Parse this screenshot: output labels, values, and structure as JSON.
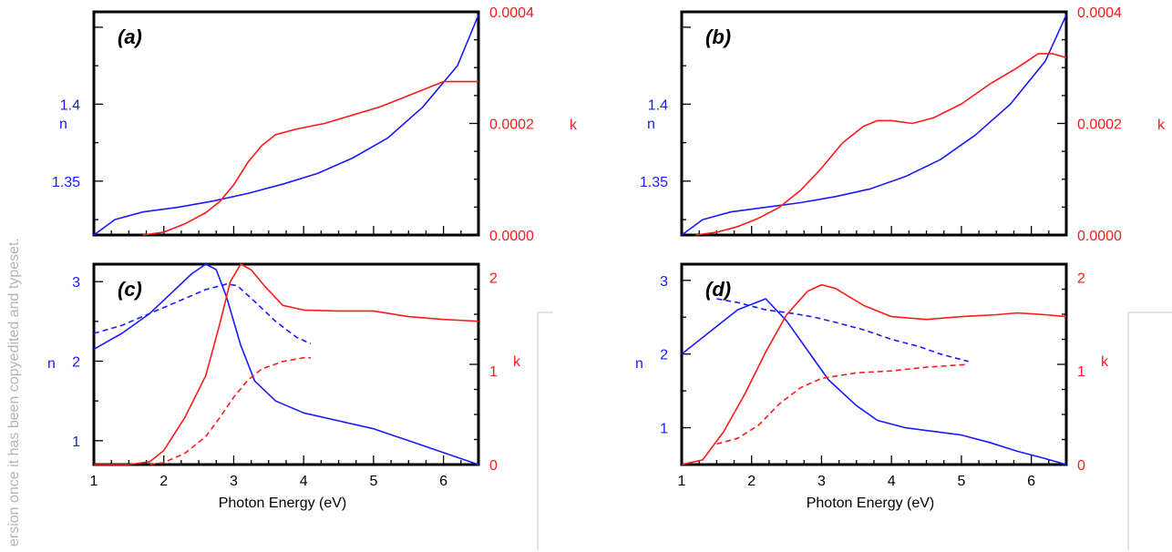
{
  "watermark": "ersion once it has been copyedited and typeset.",
  "colors": {
    "n": "#1a1aff",
    "k": "#ff1a1a"
  },
  "chart_data": [
    {
      "panel": "(a)",
      "type": "line",
      "title": "(a)",
      "xlabel": "",
      "ylabel": "n",
      "y2label": "k",
      "xlim": [
        1,
        6.5
      ],
      "ylim": [
        1.315,
        1.46
      ],
      "y2lim": [
        0,
        0.0004
      ],
      "xticks": [
        "1",
        "2",
        "3",
        "4",
        "5",
        "6"
      ],
      "show_xtick_labels": false,
      "yticks": [
        "1.35",
        "1.4"
      ],
      "y2ticks": [
        "0.0000",
        "0.0002",
        "0.0004"
      ],
      "grid": false,
      "series": [
        {
          "axis": "left",
          "style": "solid",
          "x": [
            1.0,
            1.3,
            1.7,
            2.2,
            2.7,
            3.2,
            3.7,
            4.2,
            4.7,
            5.2,
            5.7,
            6.2,
            6.5
          ],
          "y": [
            1.315,
            1.325,
            1.33,
            1.333,
            1.337,
            1.342,
            1.348,
            1.355,
            1.365,
            1.378,
            1.398,
            1.425,
            1.458
          ]
        },
        {
          "axis": "right",
          "style": "solid",
          "x": [
            1.7,
            2.0,
            2.3,
            2.6,
            2.8,
            3.0,
            3.2,
            3.4,
            3.6,
            3.9,
            4.3,
            4.7,
            5.1,
            5.5,
            5.8,
            6.0,
            6.5
          ],
          "y": [
            0.0,
            5e-06,
            2e-05,
            4e-05,
            6e-05,
            9e-05,
            0.00013,
            0.00016,
            0.00018,
            0.00019,
            0.0002,
            0.000215,
            0.00023,
            0.00025,
            0.000265,
            0.000275,
            0.000275
          ]
        }
      ]
    },
    {
      "panel": "(b)",
      "type": "line",
      "title": "(b)",
      "xlabel": "",
      "ylabel": "n",
      "y2label": "k",
      "xlim": [
        1,
        6.5
      ],
      "ylim": [
        1.315,
        1.46
      ],
      "y2lim": [
        0,
        0.0004
      ],
      "xticks": [
        "1",
        "2",
        "3",
        "4",
        "5",
        "6"
      ],
      "show_xtick_labels": false,
      "yticks": [
        "1.35",
        "1.4"
      ],
      "y2ticks": [
        "0.0000",
        "0.0002",
        "0.0004"
      ],
      "grid": false,
      "series": [
        {
          "axis": "left",
          "style": "solid",
          "x": [
            1.0,
            1.3,
            1.7,
            2.2,
            2.7,
            3.2,
            3.7,
            4.2,
            4.7,
            5.2,
            5.7,
            6.2,
            6.5
          ],
          "y": [
            1.315,
            1.325,
            1.33,
            1.333,
            1.336,
            1.34,
            1.345,
            1.353,
            1.364,
            1.38,
            1.4,
            1.428,
            1.458
          ]
        },
        {
          "axis": "right",
          "style": "solid",
          "x": [
            1.2,
            1.5,
            1.8,
            2.1,
            2.4,
            2.7,
            3.0,
            3.3,
            3.6,
            3.8,
            4.0,
            4.3,
            4.6,
            5.0,
            5.4,
            5.8,
            6.1,
            6.3,
            6.5
          ],
          "y": [
            0.0,
            5e-06,
            1.5e-05,
            3e-05,
            5e-05,
            8e-05,
            0.00012,
            0.000165,
            0.000195,
            0.000205,
            0.000205,
            0.0002,
            0.00021,
            0.000235,
            0.00027,
            0.0003,
            0.000325,
            0.000325,
            0.000318
          ]
        }
      ]
    },
    {
      "panel": "(c)",
      "type": "line",
      "title": "(c)",
      "xlabel": "Photon Energy  (eV)",
      "ylabel": "n",
      "y2label": "k",
      "xlim": [
        1,
        6.5
      ],
      "ylim": [
        0.7,
        3.22
      ],
      "y2lim": [
        0,
        2.14
      ],
      "xticks": [
        "1",
        "2",
        "3",
        "4",
        "5",
        "6"
      ],
      "show_xtick_labels": true,
      "yticks": [
        "1",
        "2",
        "3"
      ],
      "y2ticks": [
        "0",
        "1",
        "2"
      ],
      "grid": false,
      "series": [
        {
          "axis": "left",
          "style": "solid",
          "x": [
            1.0,
            1.4,
            1.8,
            2.1,
            2.4,
            2.6,
            2.75,
            2.9,
            3.1,
            3.3,
            3.6,
            4.0,
            4.5,
            5.0,
            5.5,
            6.0,
            6.5
          ],
          "y": [
            2.15,
            2.35,
            2.6,
            2.85,
            3.1,
            3.22,
            3.15,
            2.8,
            2.2,
            1.75,
            1.5,
            1.35,
            1.25,
            1.15,
            1.0,
            0.85,
            0.7
          ]
        },
        {
          "axis": "left",
          "style": "dashed",
          "x": [
            1.0,
            1.4,
            1.8,
            2.2,
            2.6,
            2.9,
            3.05,
            3.3,
            3.6,
            3.9,
            4.1
          ],
          "y": [
            2.35,
            2.45,
            2.6,
            2.75,
            2.9,
            2.97,
            2.95,
            2.75,
            2.5,
            2.3,
            2.22
          ]
        },
        {
          "axis": "right",
          "style": "solid",
          "x": [
            1.0,
            1.5,
            1.8,
            2.0,
            2.3,
            2.6,
            2.8,
            2.95,
            3.1,
            3.25,
            3.45,
            3.7,
            4.0,
            4.5,
            5.0,
            5.5,
            6.0,
            6.5
          ],
          "y": [
            0.0,
            0.0,
            0.03,
            0.15,
            0.5,
            0.95,
            1.5,
            1.95,
            2.14,
            2.08,
            1.9,
            1.7,
            1.65,
            1.64,
            1.64,
            1.58,
            1.55,
            1.53
          ]
        },
        {
          "axis": "right",
          "style": "dashed",
          "x": [
            1.8,
            2.0,
            2.3,
            2.6,
            2.8,
            3.0,
            3.2,
            3.4,
            3.7,
            4.0,
            4.1
          ],
          "y": [
            0.0,
            0.02,
            0.12,
            0.3,
            0.5,
            0.72,
            0.9,
            1.02,
            1.1,
            1.14,
            1.14
          ]
        }
      ]
    },
    {
      "panel": "(d)",
      "type": "line",
      "title": "(d)",
      "xlabel": "Photon Energy  (eV)",
      "ylabel": "n",
      "y2label": "k",
      "xlim": [
        1,
        6.5
      ],
      "ylim": [
        0.5,
        3.22
      ],
      "y2lim": [
        0,
        2.14
      ],
      "xticks": [
        "1",
        "2",
        "3",
        "4",
        "5",
        "6"
      ],
      "show_xtick_labels": true,
      "yticks": [
        "1",
        "2",
        "3"
      ],
      "y2ticks": [
        "0",
        "1",
        "2"
      ],
      "grid": false,
      "series": [
        {
          "axis": "left",
          "style": "solid",
          "x": [
            1.0,
            1.4,
            1.8,
            2.2,
            2.5,
            2.8,
            3.1,
            3.5,
            3.8,
            4.2,
            4.6,
            5.0,
            5.4,
            5.8,
            6.2,
            6.5
          ],
          "y": [
            2.0,
            2.3,
            2.6,
            2.75,
            2.45,
            2.05,
            1.65,
            1.3,
            1.1,
            1.0,
            0.95,
            0.9,
            0.8,
            0.68,
            0.58,
            0.5
          ]
        },
        {
          "axis": "left",
          "style": "dashed",
          "x": [
            1.5,
            1.8,
            2.2,
            2.6,
            2.9,
            3.2,
            3.6,
            4.0,
            4.4,
            4.7,
            5.1
          ],
          "y": [
            2.75,
            2.7,
            2.6,
            2.55,
            2.5,
            2.43,
            2.33,
            2.2,
            2.1,
            2.0,
            1.9
          ]
        },
        {
          "axis": "right",
          "style": "solid",
          "x": [
            1.0,
            1.3,
            1.6,
            1.9,
            2.2,
            2.5,
            2.8,
            3.0,
            3.2,
            3.6,
            4.0,
            4.5,
            5.0,
            5.5,
            5.8,
            6.2,
            6.5
          ],
          "y": [
            0.0,
            0.05,
            0.35,
            0.75,
            1.2,
            1.6,
            1.85,
            1.92,
            1.88,
            1.7,
            1.58,
            1.55,
            1.58,
            1.6,
            1.62,
            1.6,
            1.58
          ]
        },
        {
          "axis": "right",
          "style": "dashed",
          "x": [
            1.5,
            1.8,
            2.1,
            2.4,
            2.7,
            3.0,
            3.5,
            4.0,
            4.5,
            5.1
          ],
          "y": [
            0.22,
            0.28,
            0.42,
            0.65,
            0.82,
            0.92,
            0.98,
            1.0,
            1.04,
            1.07
          ]
        }
      ]
    }
  ]
}
